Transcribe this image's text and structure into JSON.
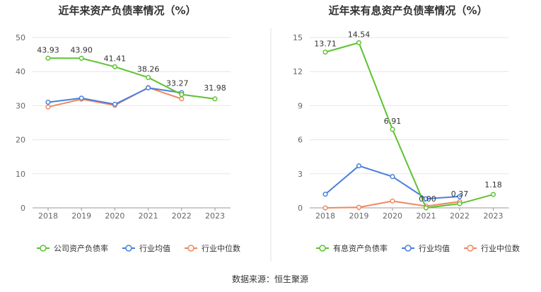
{
  "source": "数据来源：恒生聚源",
  "colors": {
    "main": "#5cc330",
    "avg": "#4a7fdc",
    "median": "#f0875f",
    "grid": "#e6e6e6",
    "axis": "#999999",
    "divider": "#e0e0e0"
  },
  "chart_data": [
    {
      "type": "line",
      "title": "近年来资产负债率情况（%）",
      "categories": [
        "2018",
        "2019",
        "2020",
        "2021",
        "2022",
        "2023"
      ],
      "ylim": [
        0,
        50
      ],
      "yticks": [
        "0",
        "10",
        "20",
        "30",
        "40",
        "50"
      ],
      "series": [
        {
          "name": "公司资产负债率",
          "role": "main",
          "values": [
            43.93,
            43.9,
            41.41,
            38.26,
            33.27,
            31.98
          ],
          "labels": [
            "43.93",
            "43.90",
            "41.41",
            "38.26",
            "33.27",
            "31.98"
          ]
        },
        {
          "name": "行业均值",
          "role": "avg",
          "values": [
            31.0,
            32.2,
            30.4,
            35.2,
            33.8,
            null
          ]
        },
        {
          "name": "行业中位数",
          "role": "median",
          "values": [
            29.6,
            31.9,
            30.1,
            35.3,
            32.0,
            null
          ]
        }
      ]
    },
    {
      "type": "line",
      "title": "近年来有息资产负债率情况（%）",
      "categories": [
        "2018",
        "2019",
        "2020",
        "2021",
        "2022",
        "2023"
      ],
      "ylim": [
        0,
        15
      ],
      "yticks": [
        "0",
        "3",
        "6",
        "9",
        "12",
        "15"
      ],
      "series": [
        {
          "name": "有息资产负债率",
          "role": "main",
          "values": [
            13.71,
            14.54,
            6.91,
            0.0,
            0.37,
            1.18
          ],
          "labels": [
            "13.71",
            "14.54",
            "6.91",
            "0.00",
            "0.37",
            "1.18"
          ]
        },
        {
          "name": "行业均值",
          "role": "avg",
          "values": [
            1.2,
            3.7,
            2.75,
            0.8,
            1.0,
            null
          ]
        },
        {
          "name": "行业中位数",
          "role": "median",
          "values": [
            0.0,
            0.05,
            0.6,
            0.15,
            0.55,
            null
          ]
        }
      ]
    }
  ]
}
